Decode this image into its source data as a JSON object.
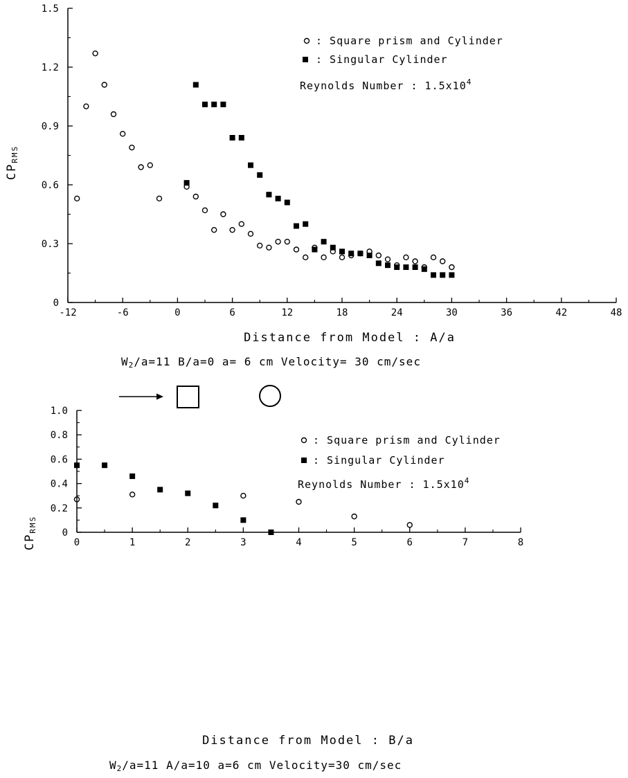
{
  "chart_data": [
    {
      "type": "scatter",
      "xlabel": "Distance from Model : A/a",
      "ylabel_main": "CP",
      "ylabel_sub": "RMS",
      "xlim": [
        -12,
        48
      ],
      "ylim": [
        0,
        1.5
      ],
      "xticks": [
        -12,
        -6,
        0,
        6,
        12,
        18,
        24,
        30,
        36,
        42,
        48
      ],
      "xtick_labels": [
        "-12",
        "-6",
        "0",
        "6",
        "12",
        "18",
        "24",
        "30",
        "36",
        "42",
        "48"
      ],
      "yticks": [
        0,
        0.3,
        0.6,
        0.9,
        1.2,
        1.5
      ],
      "ytick_labels": [
        "0",
        "0.3",
        "0.6",
        "0.9",
        "1.2",
        "1.5"
      ],
      "grid": false,
      "legend_position": "top-right",
      "legend": [
        {
          "symbol": "o",
          "label": ": Square prism and Cylinder"
        },
        {
          "symbol": "■",
          "label": ": Singular Cylinder"
        }
      ],
      "annotation": {
        "text": "Reynolds Number : 1.5x10",
        "superscript": "4"
      },
      "caption": {
        "prefix": "W",
        "subscript": "2",
        "rest": "/a=11  B/a=0  a= 6 cm  Velocity= 30 cm/sec"
      },
      "series": [
        {
          "name": "Square prism and Cylinder",
          "marker": "open-circle",
          "x": [
            -11,
            -10,
            -9,
            -8,
            -7,
            -6,
            -5,
            -4,
            -3,
            -2,
            1,
            2,
            3,
            4,
            5,
            6,
            7,
            8,
            9,
            10,
            11,
            12,
            13,
            14,
            15,
            16,
            17,
            18,
            19,
            20,
            21,
            22,
            23,
            24,
            25,
            26,
            27,
            28,
            29,
            30
          ],
          "y": [
            0.53,
            1.0,
            1.27,
            1.11,
            0.96,
            0.86,
            0.79,
            0.69,
            0.7,
            0.53,
            0.59,
            0.54,
            0.47,
            0.37,
            0.45,
            0.37,
            0.4,
            0.35,
            0.29,
            0.28,
            0.31,
            0.31,
            0.27,
            0.23,
            0.28,
            0.23,
            0.26,
            0.23,
            0.24,
            0.25,
            0.26,
            0.24,
            0.22,
            0.19,
            0.23,
            0.21,
            0.18,
            0.23,
            0.21,
            0.18
          ]
        },
        {
          "name": "Singular Cylinder",
          "marker": "filled-square",
          "x": [
            1,
            2,
            3,
            4,
            5,
            6,
            7,
            8,
            9,
            10,
            11,
            12,
            13,
            14,
            15,
            16,
            17,
            18,
            19,
            20,
            21,
            22,
            23,
            24,
            25,
            26,
            27,
            28,
            29,
            30
          ],
          "y": [
            0.61,
            1.11,
            1.01,
            1.01,
            1.01,
            0.84,
            0.84,
            0.7,
            0.65,
            0.55,
            0.53,
            0.51,
            0.39,
            0.4,
            0.27,
            0.31,
            0.28,
            0.26,
            0.25,
            0.25,
            0.24,
            0.2,
            0.19,
            0.18,
            0.18,
            0.18,
            0.17,
            0.14,
            0.14,
            0.14
          ]
        }
      ]
    },
    {
      "type": "scatter",
      "xlabel": "Distance from Model : B/a",
      "ylabel_main": "CP",
      "ylabel_sub": "RMS",
      "xlim": [
        0,
        8
      ],
      "ylim": [
        0,
        1.0
      ],
      "xticks": [
        0,
        1,
        2,
        3,
        4,
        5,
        6,
        7,
        8
      ],
      "xtick_labels": [
        "0",
        "1",
        "2",
        "3",
        "4",
        "5",
        "6",
        "7",
        "8"
      ],
      "yticks": [
        0,
        0.2,
        0.4,
        0.6,
        0.8,
        1.0
      ],
      "ytick_labels": [
        "0",
        "0.2",
        "0.4",
        "0.6",
        "0.8",
        "1.0"
      ],
      "grid": false,
      "legend_position": "top-right",
      "legend": [
        {
          "symbol": "o",
          "label": ": Square prism and Cylinder"
        },
        {
          "symbol": "■",
          "label": ": Singular Cylinder"
        }
      ],
      "annotation": {
        "text": "Reynolds Number : 1.5x10",
        "superscript": "4"
      },
      "caption": {
        "prefix": "W",
        "subscript": "2",
        "rest": "/a=11  A/a=10  a=6 cm  Velocity=30 cm/sec"
      },
      "series": [
        {
          "name": "Square prism and Cylinder",
          "marker": "open-circle",
          "x": [
            0,
            1,
            3,
            4,
            5,
            6
          ],
          "y": [
            0.27,
            0.31,
            0.3,
            0.25,
            0.13,
            0.06
          ]
        },
        {
          "name": "Singular Cylinder",
          "marker": "filled-square",
          "x": [
            0,
            0.5,
            1,
            1.5,
            2,
            2.5,
            3,
            3.5
          ],
          "y": [
            0.55,
            0.55,
            0.46,
            0.35,
            0.32,
            0.22,
            0.1,
            0.0
          ]
        }
      ]
    }
  ]
}
